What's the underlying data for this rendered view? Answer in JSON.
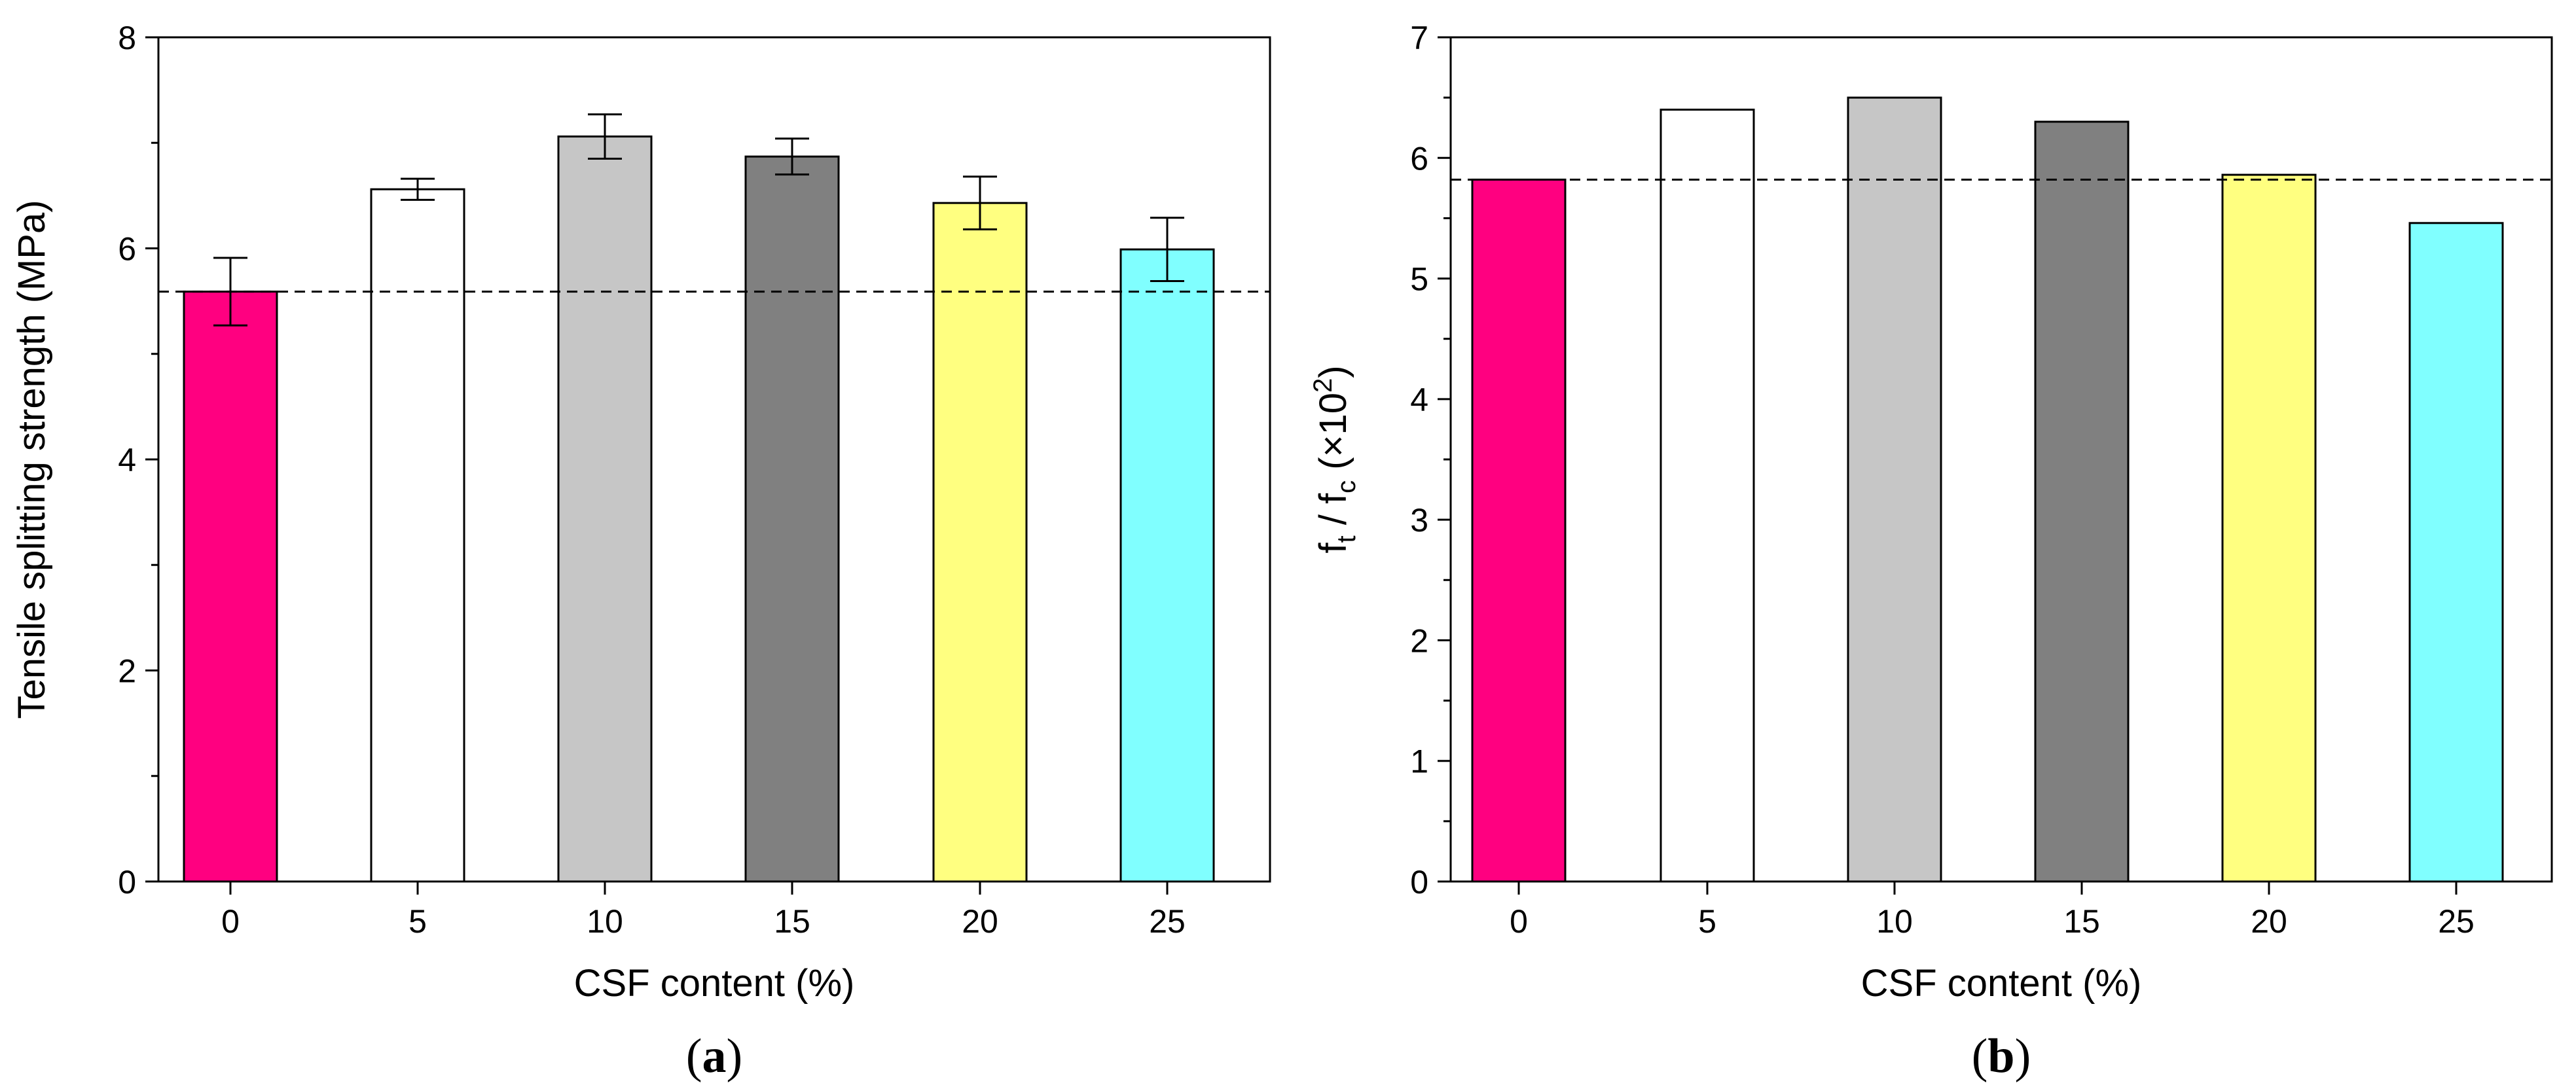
{
  "chart_data": [
    {
      "type": "bar",
      "panel_label": "a",
      "categories": [
        "0",
        "5",
        "10",
        "15",
        "20",
        "25"
      ],
      "values": [
        5.59,
        6.56,
        7.06,
        6.87,
        6.43,
        5.99
      ],
      "errors": [
        0.32,
        0.1,
        0.21,
        0.17,
        0.25,
        0.3
      ],
      "colors": [
        "#ff0080",
        "#ffffff",
        "#c6c6c6",
        "#808080",
        "#ffff80",
        "#80ffff"
      ],
      "reference_line": 5.59,
      "xlabel": "CSF content (%)",
      "ylabel": "Tensile splitting strength (MPa)",
      "ylim": [
        0,
        8
      ],
      "yticks": [
        0,
        2,
        4,
        6,
        8
      ],
      "grid": false
    },
    {
      "type": "bar",
      "panel_label": "b",
      "categories": [
        "0",
        "5",
        "10",
        "15",
        "20",
        "25"
      ],
      "values": [
        5.82,
        6.4,
        6.5,
        6.3,
        5.86,
        5.46
      ],
      "colors": [
        "#ff0080",
        "#ffffff",
        "#c6c6c6",
        "#808080",
        "#ffff80",
        "#80ffff"
      ],
      "reference_line": 5.82,
      "xlabel": "CSF content (%)",
      "ylabel": {
        "f1": "f",
        "sub1": "t",
        "sep": " / ",
        "f2": "f",
        "sub2": "c",
        "mult": " (×10",
        "sup": "2",
        "close": ")"
      },
      "ylim": [
        0,
        7
      ],
      "yticks": [
        0,
        1,
        2,
        3,
        4,
        5,
        6,
        7
      ],
      "grid": false
    }
  ]
}
